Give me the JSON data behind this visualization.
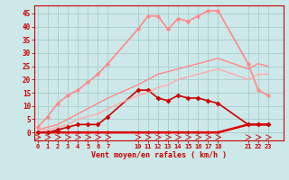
{
  "bg_color": "#cce8e8",
  "grid_color": "#aacccc",
  "xlabel": "Vent moyen/en rafales ( km/h )",
  "xlabel_color": "#cc0000",
  "tick_color": "#cc0000",
  "x_ticks": [
    0,
    1,
    2,
    3,
    4,
    5,
    6,
    7,
    10,
    11,
    12,
    13,
    14,
    15,
    16,
    17,
    18,
    21,
    22,
    23
  ],
  "ylim": [
    -3,
    48
  ],
  "xlim": [
    -0.3,
    24.5
  ],
  "yticks": [
    0,
    5,
    10,
    15,
    20,
    25,
    30,
    35,
    40,
    45
  ],
  "series": [
    {
      "name": "flat_bottom",
      "color": "#dd0000",
      "linewidth": 1.8,
      "marker": "+",
      "markersize": 3.5,
      "markeredgewidth": 1.0,
      "x": [
        0,
        1,
        2,
        3,
        4,
        5,
        6,
        7,
        10,
        11,
        12,
        13,
        14,
        15,
        16,
        17,
        18,
        21,
        22,
        23
      ],
      "y": [
        0,
        0,
        0,
        0,
        0,
        0,
        0,
        0,
        0,
        0,
        0,
        0,
        0,
        0,
        0,
        0,
        0,
        3,
        3,
        3
      ]
    },
    {
      "name": "medium_peaking",
      "color": "#cc0000",
      "linewidth": 1.2,
      "marker": "D",
      "markersize": 2.5,
      "markeredgewidth": 0.5,
      "x": [
        0,
        1,
        2,
        3,
        4,
        5,
        6,
        7,
        10,
        11,
        12,
        13,
        14,
        15,
        16,
        17,
        18,
        21,
        22,
        23
      ],
      "y": [
        0,
        0,
        1,
        2,
        3,
        3,
        3,
        6,
        16,
        16,
        13,
        12,
        14,
        13,
        13,
        12,
        11,
        3,
        3,
        3
      ]
    },
    {
      "name": "pink_diagonal_lower",
      "color": "#ff8888",
      "linewidth": 1.0,
      "marker": "None",
      "markersize": 0,
      "markeredgewidth": 0,
      "x": [
        0,
        1,
        2,
        3,
        4,
        5,
        6,
        7,
        10,
        11,
        12,
        13,
        14,
        15,
        16,
        17,
        18,
        21,
        22,
        23
      ],
      "y": [
        1,
        2,
        3,
        5,
        7,
        9,
        11,
        13,
        18,
        20,
        22,
        23,
        24,
        25,
        26,
        27,
        28,
        24,
        26,
        25
      ]
    },
    {
      "name": "pink_medium_upper",
      "color": "#ff8888",
      "linewidth": 1.2,
      "marker": "o",
      "markersize": 2.5,
      "markeredgewidth": 0.5,
      "x": [
        0,
        1,
        2,
        3,
        4,
        5,
        6,
        7,
        10,
        11,
        12,
        13,
        14,
        15,
        16,
        17,
        18,
        21,
        22,
        23
      ],
      "y": [
        2,
        6,
        11,
        14,
        16,
        19,
        22,
        26,
        39,
        44,
        44,
        39,
        43,
        42,
        44,
        46,
        46,
        26,
        16,
        14
      ]
    },
    {
      "name": "very_light_diagonal",
      "color": "#ffaaaa",
      "linewidth": 1.0,
      "marker": "None",
      "markersize": 0,
      "markeredgewidth": 0,
      "x": [
        0,
        1,
        2,
        3,
        4,
        5,
        6,
        7,
        10,
        11,
        12,
        13,
        14,
        15,
        16,
        17,
        18,
        21,
        22,
        23
      ],
      "y": [
        1,
        1,
        2,
        3,
        5,
        6,
        7,
        9,
        14,
        15,
        17,
        18,
        20,
        21,
        22,
        23,
        24,
        20,
        22,
        22
      ]
    }
  ]
}
